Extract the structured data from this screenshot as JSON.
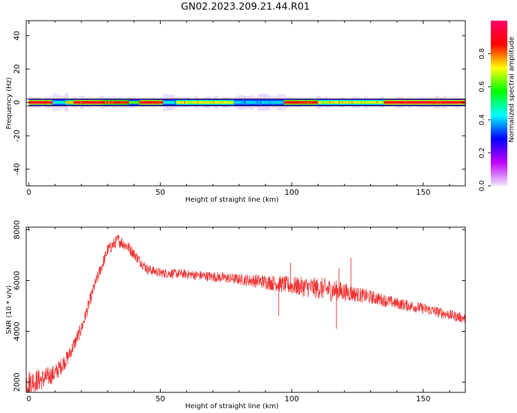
{
  "title": "GN02.2023.209.21.44.R01",
  "chart_data": [
    {
      "type": "heatmap",
      "name": "spectrogram",
      "xlabel": "Height of straight line (km)",
      "ylabel": "Frequency (Hz)",
      "xlim": [
        -1,
        166
      ],
      "ylim": [
        -50,
        49
      ],
      "xticks": [
        0,
        50,
        100,
        150
      ],
      "yticks": [
        -40,
        -20,
        0,
        20,
        40
      ],
      "colorbar": {
        "label": "Normalized spectral amplitude",
        "range": [
          0,
          1
        ],
        "ticks": [
          0.0,
          0.2,
          0.4,
          0.6,
          0.8
        ],
        "colors": [
          "#f0e6ff",
          "#c000ff",
          "#0000ff",
          "#00ffff",
          "#00ff00",
          "#ffff00",
          "#ff0000",
          "#ff0066"
        ]
      },
      "band": {
        "center_hz": 0,
        "segments": [
          {
            "x0": 0,
            "x1": 9,
            "amp": 0.9
          },
          {
            "x0": 9,
            "x1": 14,
            "amp": 0.45
          },
          {
            "x0": 14,
            "x1": 17,
            "amp": 0.75
          },
          {
            "x0": 17,
            "x1": 28,
            "amp": 0.9
          },
          {
            "x0": 28,
            "x1": 38,
            "amp": 0.85
          },
          {
            "x0": 38,
            "x1": 42,
            "amp": 0.6
          },
          {
            "x0": 42,
            "x1": 51,
            "amp": 0.9
          },
          {
            "x0": 51,
            "x1": 56,
            "amp": 0.45
          },
          {
            "x0": 56,
            "x1": 78,
            "amp": 0.72
          },
          {
            "x0": 78,
            "x1": 97,
            "amp": 0.4
          },
          {
            "x0": 97,
            "x1": 110,
            "amp": 0.88
          },
          {
            "x0": 110,
            "x1": 135,
            "amp": 0.7
          },
          {
            "x0": 135,
            "x1": 166,
            "amp": 0.92
          }
        ]
      }
    },
    {
      "type": "line",
      "name": "snr",
      "xlabel": "Height of straight line (km)",
      "ylabel": "SNR (10 * v/v)",
      "xlim": [
        -1,
        166
      ],
      "ylim": [
        1600,
        8100
      ],
      "xticks": [
        0,
        50,
        100,
        150
      ],
      "yticks": [
        2000,
        4000,
        6000,
        8000
      ],
      "color": "#ee3333",
      "trend": {
        "x": [
          -1,
          5,
          10,
          15,
          20,
          25,
          30,
          34,
          38,
          42,
          45,
          50,
          60,
          70,
          80,
          90,
          100,
          110,
          120,
          130,
          140,
          150,
          160,
          166
        ],
        "y": [
          2000,
          2100,
          2350,
          3000,
          4100,
          5800,
          7200,
          7600,
          7300,
          6800,
          6450,
          6300,
          6250,
          6150,
          6050,
          5950,
          5800,
          5700,
          5550,
          5350,
          5100,
          4900,
          4650,
          4500
        ]
      },
      "noise": {
        "x": [
          -1,
          15,
          25,
          35,
          45,
          60,
          80,
          95,
          105,
          115,
          125,
          140,
          166
        ],
        "amp": [
          500,
          300,
          250,
          250,
          200,
          180,
          220,
          330,
          400,
          450,
          300,
          230,
          200
        ]
      },
      "spikes": [
        {
          "x": 95,
          "y": 4600
        },
        {
          "x": 99.5,
          "y": 6700
        },
        {
          "x": 117,
          "y": 4100
        },
        {
          "x": 118,
          "y": 6500
        },
        {
          "x": 122.5,
          "y": 6900
        },
        {
          "x": 3,
          "y": 1750
        }
      ]
    }
  ]
}
